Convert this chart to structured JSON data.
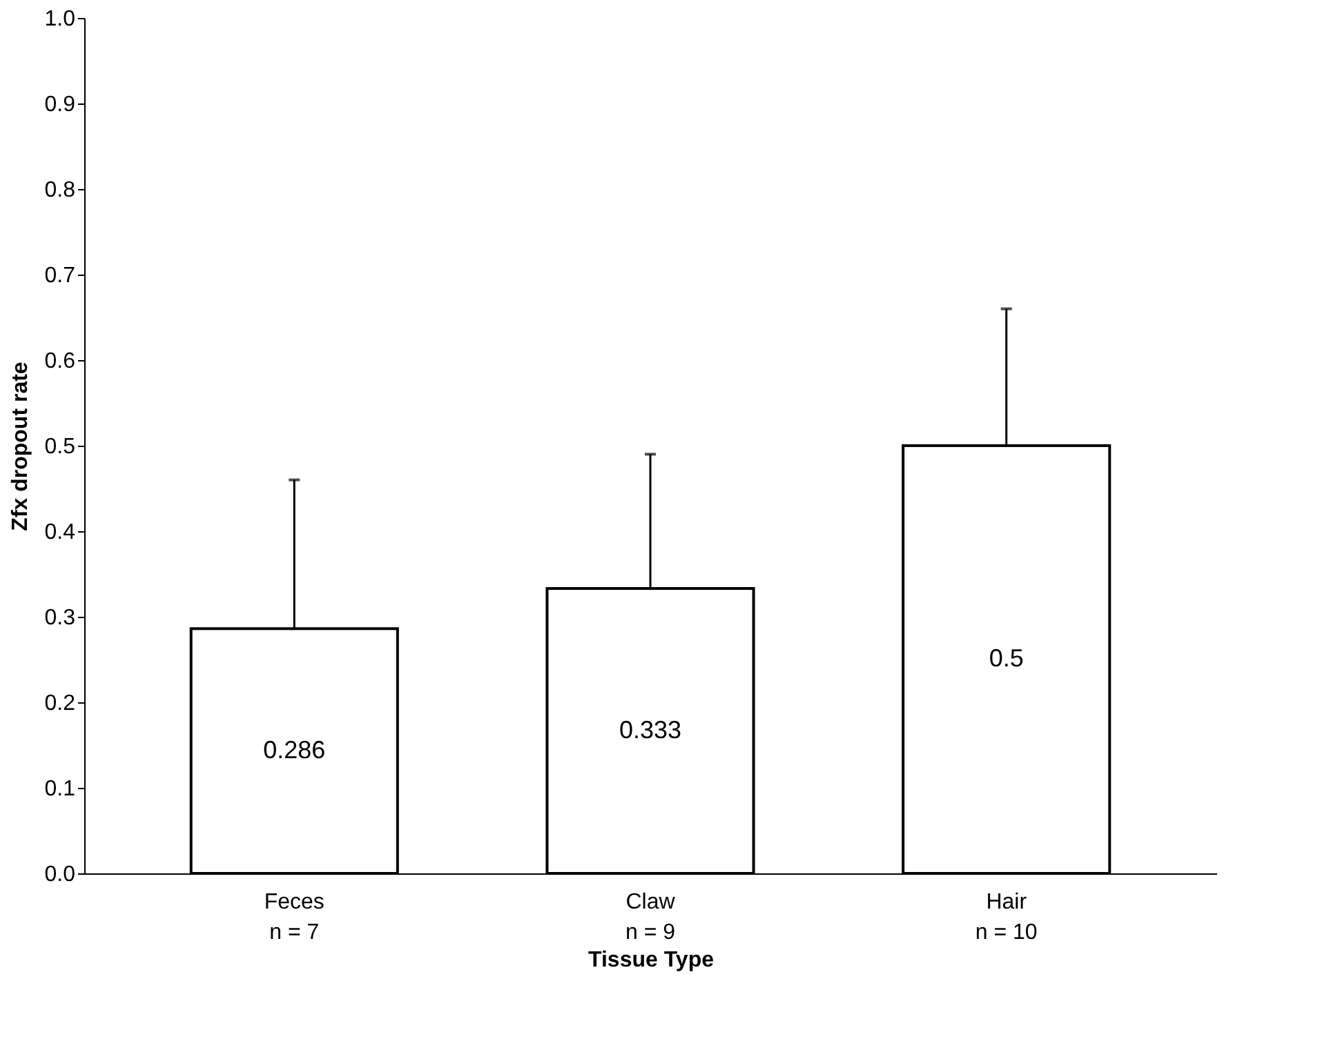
{
  "chart_data": {
    "type": "bar",
    "xlabel": "Tissue Type",
    "ylabel": "Zfx dropout rate",
    "categories": [
      "Feces\nn =  7",
      "Claw\nn =  9",
      "Hair\nn =  10"
    ],
    "values": [
      0.286,
      0.333,
      0.5
    ],
    "errors": [
      [
        0.286,
        0.46
      ],
      [
        0.333,
        0.49
      ],
      [
        0.5,
        0.66
      ]
    ],
    "color": "#ffffff",
    "data_labels": true,
    "ylim": [
      0,
      1
    ],
    "yticks": [
      {
        "value": 0,
        "label": "0.0"
      },
      {
        "value": 0.1,
        "label": "0.1"
      },
      {
        "value": 0.2,
        "label": "0.2"
      },
      {
        "value": 0.3,
        "label": "0.3"
      },
      {
        "value": 0.4,
        "label": "0.4"
      },
      {
        "value": 0.5,
        "label": "0.5"
      },
      {
        "value": 0.6,
        "label": "0.6"
      },
      {
        "value": 0.7,
        "label": "0.7"
      },
      {
        "value": 0.8,
        "label": "0.8"
      },
      {
        "value": 0.9,
        "label": "0.9"
      },
      {
        "value": 1,
        "label": "1.0"
      }
    ],
    "grid": false
  }
}
